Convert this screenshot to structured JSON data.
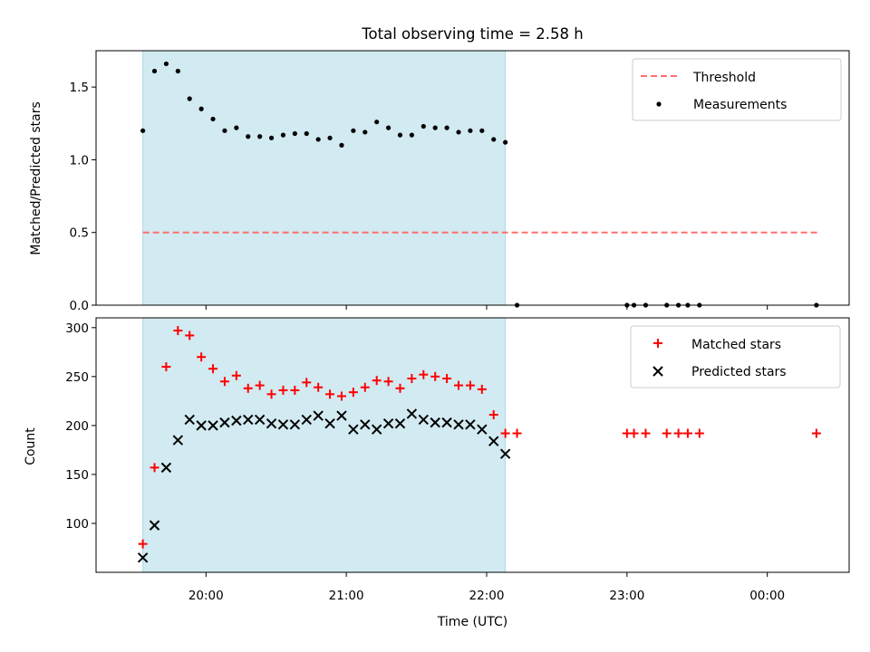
{
  "chart_data": [
    {
      "type": "scatter",
      "panel": "top",
      "title": "Total observing time = 2.58 h",
      "ylabel": "Matched/Predicted stars",
      "xlabel": "",
      "ylim": [
        0,
        1.75
      ],
      "yticks": [
        0.0,
        0.5,
        1.0,
        1.5
      ],
      "ytick_labels": [
        "0.0",
        "0.5",
        "1.0",
        "1.5"
      ],
      "shaded_interval": [
        "19:33",
        "22:08"
      ],
      "shade_color": "#add8e6",
      "threshold": {
        "name": "Threshold",
        "value": 0.5,
        "x_start": "19:33",
        "x_end": "00:22",
        "color": "#ff6f6f",
        "style": "dashed"
      },
      "series": [
        {
          "name": "Measurements",
          "marker": "dot",
          "color": "#000000",
          "points": [
            [
              "19:33",
              1.2
            ],
            [
              "19:38",
              1.61
            ],
            [
              "19:43",
              1.66
            ],
            [
              "19:48",
              1.61
            ],
            [
              "19:53",
              1.42
            ],
            [
              "19:58",
              1.35
            ],
            [
              "20:03",
              1.28
            ],
            [
              "20:08",
              1.2
            ],
            [
              "20:13",
              1.22
            ],
            [
              "20:18",
              1.16
            ],
            [
              "20:23",
              1.16
            ],
            [
              "20:28",
              1.15
            ],
            [
              "20:33",
              1.17
            ],
            [
              "20:38",
              1.18
            ],
            [
              "20:43",
              1.18
            ],
            [
              "20:48",
              1.14
            ],
            [
              "20:53",
              1.15
            ],
            [
              "20:58",
              1.1
            ],
            [
              "21:03",
              1.2
            ],
            [
              "21:08",
              1.19
            ],
            [
              "21:13",
              1.26
            ],
            [
              "21:18",
              1.22
            ],
            [
              "21:23",
              1.17
            ],
            [
              "21:28",
              1.17
            ],
            [
              "21:33",
              1.23
            ],
            [
              "21:38",
              1.22
            ],
            [
              "21:43",
              1.22
            ],
            [
              "21:48",
              1.19
            ],
            [
              "21:53",
              1.2
            ],
            [
              "21:58",
              1.2
            ],
            [
              "22:03",
              1.14
            ],
            [
              "22:08",
              1.12
            ],
            [
              "22:13",
              0.0
            ],
            [
              "23:00",
              0.0
            ],
            [
              "23:03",
              0.0
            ],
            [
              "23:08",
              0.0
            ],
            [
              "23:17",
              0.0
            ],
            [
              "23:22",
              0.0
            ],
            [
              "23:26",
              0.0
            ],
            [
              "23:31",
              0.0
            ],
            [
              "00:21",
              0.0
            ]
          ]
        }
      ],
      "legend": {
        "placement": "upper-right",
        "entries": [
          "Threshold",
          "Measurements"
        ]
      }
    },
    {
      "type": "scatter",
      "panel": "bottom",
      "title": "",
      "xlabel": "Time (UTC)",
      "ylabel": "Count",
      "ylim": [
        50,
        310
      ],
      "yticks": [
        100,
        150,
        200,
        250,
        300
      ],
      "ytick_labels": [
        "100",
        "150",
        "200",
        "250",
        "300"
      ],
      "xlim": [
        "19:13",
        "00:35"
      ],
      "xticks": [
        "20:00",
        "21:00",
        "22:00",
        "23:00",
        "00:00"
      ],
      "shaded_interval": [
        "19:33",
        "22:08"
      ],
      "shade_color": "#add8e6",
      "series": [
        {
          "name": "Matched stars",
          "marker": "plus",
          "color": "#ff0000",
          "points": [
            [
              "19:33",
              79
            ],
            [
              "19:38",
              157
            ],
            [
              "19:43",
              260
            ],
            [
              "19:48",
              297
            ],
            [
              "19:53",
              292
            ],
            [
              "19:58",
              270
            ],
            [
              "20:03",
              258
            ],
            [
              "20:08",
              245
            ],
            [
              "20:13",
              251
            ],
            [
              "20:18",
              238
            ],
            [
              "20:23",
              241
            ],
            [
              "20:28",
              232
            ],
            [
              "20:33",
              236
            ],
            [
              "20:38",
              236
            ],
            [
              "20:43",
              244
            ],
            [
              "20:48",
              239
            ],
            [
              "20:53",
              232
            ],
            [
              "20:58",
              230
            ],
            [
              "21:03",
              234
            ],
            [
              "21:08",
              239
            ],
            [
              "21:13",
              246
            ],
            [
              "21:18",
              245
            ],
            [
              "21:23",
              238
            ],
            [
              "21:28",
              248
            ],
            [
              "21:33",
              252
            ],
            [
              "21:38",
              250
            ],
            [
              "21:43",
              248
            ],
            [
              "21:48",
              241
            ],
            [
              "21:53",
              241
            ],
            [
              "21:58",
              237
            ],
            [
              "22:03",
              211
            ],
            [
              "22:08",
              192
            ],
            [
              "22:13",
              192
            ],
            [
              "23:00",
              192
            ],
            [
              "23:03",
              192
            ],
            [
              "23:08",
              192
            ],
            [
              "23:17",
              192
            ],
            [
              "23:22",
              192
            ],
            [
              "23:26",
              192
            ],
            [
              "23:31",
              192
            ],
            [
              "00:21",
              192
            ]
          ]
        },
        {
          "name": "Predicted stars",
          "marker": "x",
          "color": "#000000",
          "points": [
            [
              "19:33",
              65
            ],
            [
              "19:38",
              98
            ],
            [
              "19:43",
              157
            ],
            [
              "19:48",
              185
            ],
            [
              "19:53",
              206
            ],
            [
              "19:58",
              200
            ],
            [
              "20:03",
              200
            ],
            [
              "20:08",
              203
            ],
            [
              "20:13",
              205
            ],
            [
              "20:18",
              206
            ],
            [
              "20:23",
              206
            ],
            [
              "20:28",
              202
            ],
            [
              "20:33",
              201
            ],
            [
              "20:38",
              201
            ],
            [
              "20:43",
              206
            ],
            [
              "20:48",
              210
            ],
            [
              "20:53",
              202
            ],
            [
              "20:58",
              210
            ],
            [
              "21:03",
              196
            ],
            [
              "21:08",
              201
            ],
            [
              "21:13",
              196
            ],
            [
              "21:18",
              202
            ],
            [
              "21:23",
              202
            ],
            [
              "21:28",
              212
            ],
            [
              "21:33",
              206
            ],
            [
              "21:38",
              203
            ],
            [
              "21:43",
              203
            ],
            [
              "21:48",
              201
            ],
            [
              "21:53",
              201
            ],
            [
              "21:58",
              196
            ],
            [
              "22:03",
              184
            ],
            [
              "22:08",
              171
            ]
          ]
        }
      ],
      "legend": {
        "placement": "upper-right",
        "entries": [
          "Matched stars",
          "Predicted stars"
        ]
      }
    }
  ]
}
